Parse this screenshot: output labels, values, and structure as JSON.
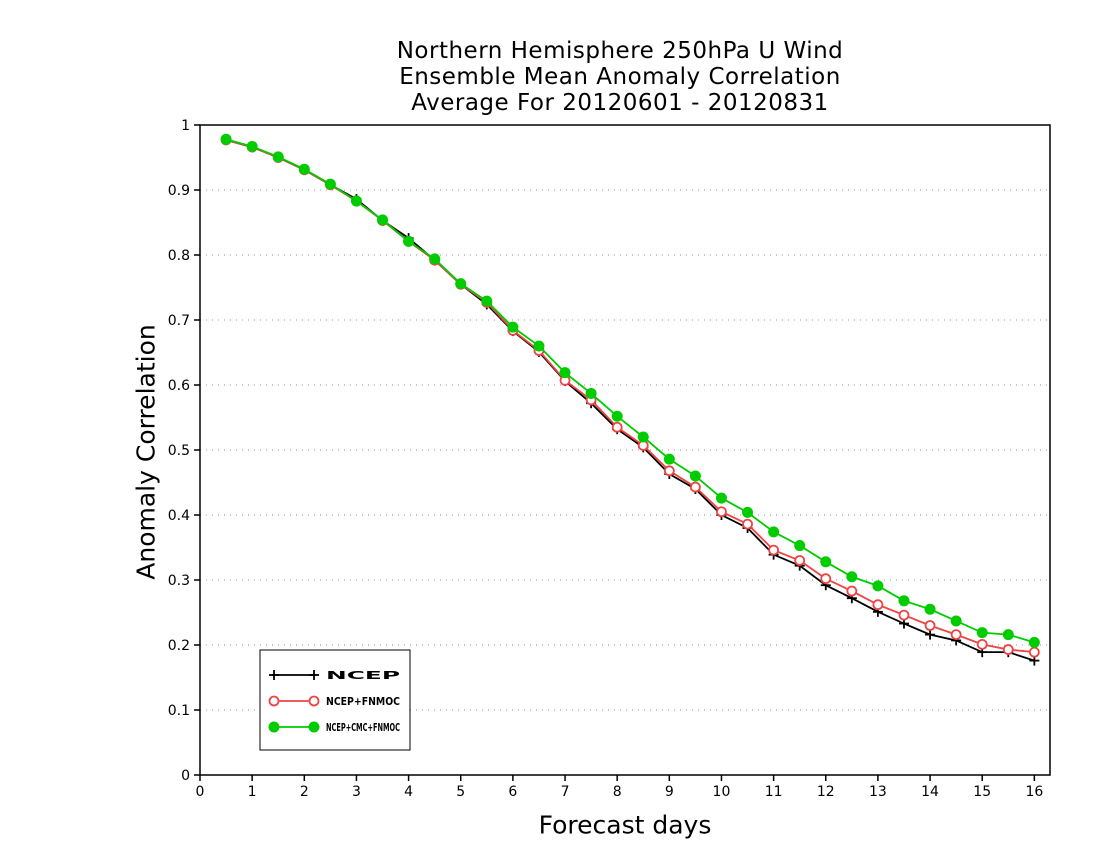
{
  "chart_data": {
    "type": "line",
    "title": [
      "Northern Hemisphere 250hPa U Wind",
      "Ensemble Mean Anomaly Correlation",
      "Average For 20120601 - 20120831"
    ],
    "xlabel": "Forecast days",
    "ylabel": "Anomaly Correlation",
    "xlim": [
      0,
      16.3
    ],
    "ylim": [
      0,
      1
    ],
    "xticks": [
      "0",
      "1",
      "2",
      "3",
      "4",
      "5",
      "6",
      "7",
      "8",
      "9",
      "10",
      "11",
      "12",
      "13",
      "14",
      "15",
      "16"
    ],
    "yticks": [
      "0",
      "0.1",
      "0.2",
      "0.3",
      "0.4",
      "0.5",
      "0.6",
      "0.7",
      "0.8",
      "0.9",
      "1"
    ],
    "grid": "horizontal dotted",
    "legend_position": "bottom-left",
    "x": [
      0.5,
      1,
      1.5,
      2,
      2.5,
      3,
      3.5,
      4,
      4.5,
      5,
      5.5,
      6,
      6.5,
      7,
      7.5,
      8,
      8.5,
      9,
      9.5,
      10,
      10.5,
      11,
      11.5,
      12,
      12.5,
      13,
      13.5,
      14,
      14.5,
      15,
      15.5,
      16
    ],
    "series": [
      {
        "name": "NCEP",
        "color": "#000000",
        "marker": "plus",
        "values": [
          0.977,
          0.966,
          0.95,
          0.931,
          0.908,
          0.886,
          0.853,
          0.826,
          0.792,
          0.755,
          0.724,
          0.683,
          0.651,
          0.606,
          0.572,
          0.532,
          0.504,
          0.463,
          0.44,
          0.4,
          0.38,
          0.339,
          0.322,
          0.292,
          0.272,
          0.251,
          0.233,
          0.216,
          0.207,
          0.189,
          0.189,
          0.176
        ]
      },
      {
        "name": "NCEP+FNMOC",
        "color": "#ee4444",
        "marker": "open-circle",
        "values": [
          0.977,
          0.966,
          0.95,
          0.931,
          0.908,
          0.883,
          0.853,
          0.821,
          0.792,
          0.755,
          0.727,
          0.684,
          0.653,
          0.607,
          0.577,
          0.535,
          0.507,
          0.468,
          0.443,
          0.405,
          0.386,
          0.346,
          0.33,
          0.302,
          0.283,
          0.262,
          0.246,
          0.23,
          0.216,
          0.201,
          0.193,
          0.189
        ]
      },
      {
        "name": "NCEP+CMC+FNMOC",
        "color": "#00cc00",
        "marker": "filled-circle",
        "values": [
          0.978,
          0.967,
          0.951,
          0.932,
          0.909,
          0.883,
          0.854,
          0.821,
          0.794,
          0.756,
          0.729,
          0.689,
          0.66,
          0.619,
          0.587,
          0.552,
          0.52,
          0.486,
          0.46,
          0.426,
          0.404,
          0.374,
          0.353,
          0.328,
          0.305,
          0.291,
          0.268,
          0.255,
          0.237,
          0.219,
          0.216,
          0.204
        ]
      }
    ]
  }
}
